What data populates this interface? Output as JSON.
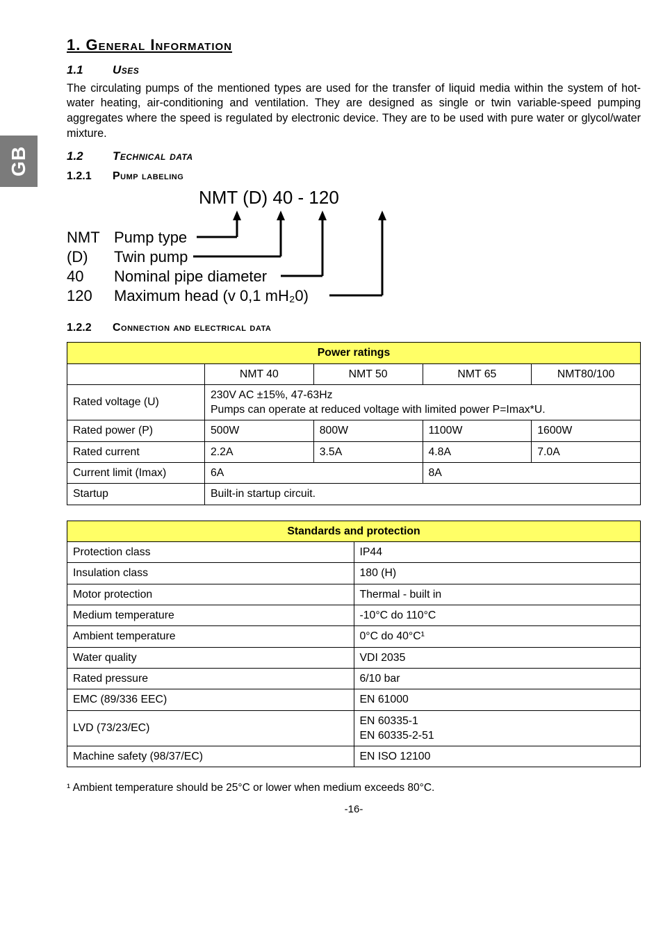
{
  "side_tab": "GB",
  "title": "1.   General Information",
  "sec_1_1_num": "1.1",
  "sec_1_1_label": "Uses",
  "uses_text": "The circulating pumps of the mentioned types are used for the transfer of liquid media within the system of hot-water heating, air-conditioning and ventilation. They are designed as single or twin variable-speed pumping aggregates where the speed is regulated by electronic device. They are to be used with pure water or glycol/water mixture.",
  "sec_1_2_num": "1.2",
  "sec_1_2_label": "Technical data",
  "sec_1_2_1_num": "1.2.1",
  "sec_1_2_1_label": "Pump labeling",
  "diagram": {
    "header": "NMT (D)  40  -  120",
    "rows": [
      {
        "code": "NMT",
        "desc": "Pump type"
      },
      {
        "code": "(D)",
        "desc": "Twin pump"
      },
      {
        "code": "40",
        "desc": "Nominal pipe diameter"
      },
      {
        "code": "120",
        "desc": "Maximum head (v 0,1 mH₂0)"
      }
    ]
  },
  "sec_1_2_2_num": "1.2.2",
  "sec_1_2_2_label": "Connection and electrical data",
  "power_table": {
    "title": "Power ratings",
    "cols": [
      "",
      "NMT 40",
      "NMT 50",
      "NMT 65",
      "NMT80/100"
    ],
    "voltage_label": "Rated voltage (U)",
    "voltage_text": "230V AC ±15%, 47-63Hz\nPumps can operate at reduced voltage with limited power P=Imax*U.",
    "rows": [
      {
        "label": "Rated power (P)",
        "c1": "500W",
        "c2": "800W",
        "c3": "1100W",
        "c4": "1600W"
      },
      {
        "label": "Rated current",
        "c1": "2.2A",
        "c2": "3.5A",
        "c3": "4.8A",
        "c4": "7.0A"
      }
    ],
    "limit_label": "Current limit (Imax)",
    "limit_c12": "6A",
    "limit_c34": "8A",
    "startup_label": "Startup",
    "startup_val": "Built-in startup circuit."
  },
  "std_table": {
    "title": "Standards and protection",
    "rows": [
      [
        "Protection class",
        "IP44"
      ],
      [
        "Insulation class",
        "180 (H)"
      ],
      [
        "Motor protection",
        "Thermal  - built in"
      ],
      [
        "Medium temperature",
        "-10°C do 110°C"
      ],
      [
        "Ambient temperature",
        "0°C do 40°C¹"
      ],
      [
        "Water quality",
        "VDI 2035"
      ],
      [
        "Rated pressure",
        "6/10 bar"
      ],
      [
        "EMC (89/336 EEC)",
        "EN 61000"
      ],
      [
        "LVD (73/23/EC)",
        "EN 60335-1\nEN 60335-2-51"
      ],
      [
        "Machine safety (98/37/EC)",
        "EN ISO 12100"
      ]
    ]
  },
  "footnote": "¹ Ambient temperature should be 25°C or lower when medium exceeds 80°C.",
  "pagenum": "-16-"
}
